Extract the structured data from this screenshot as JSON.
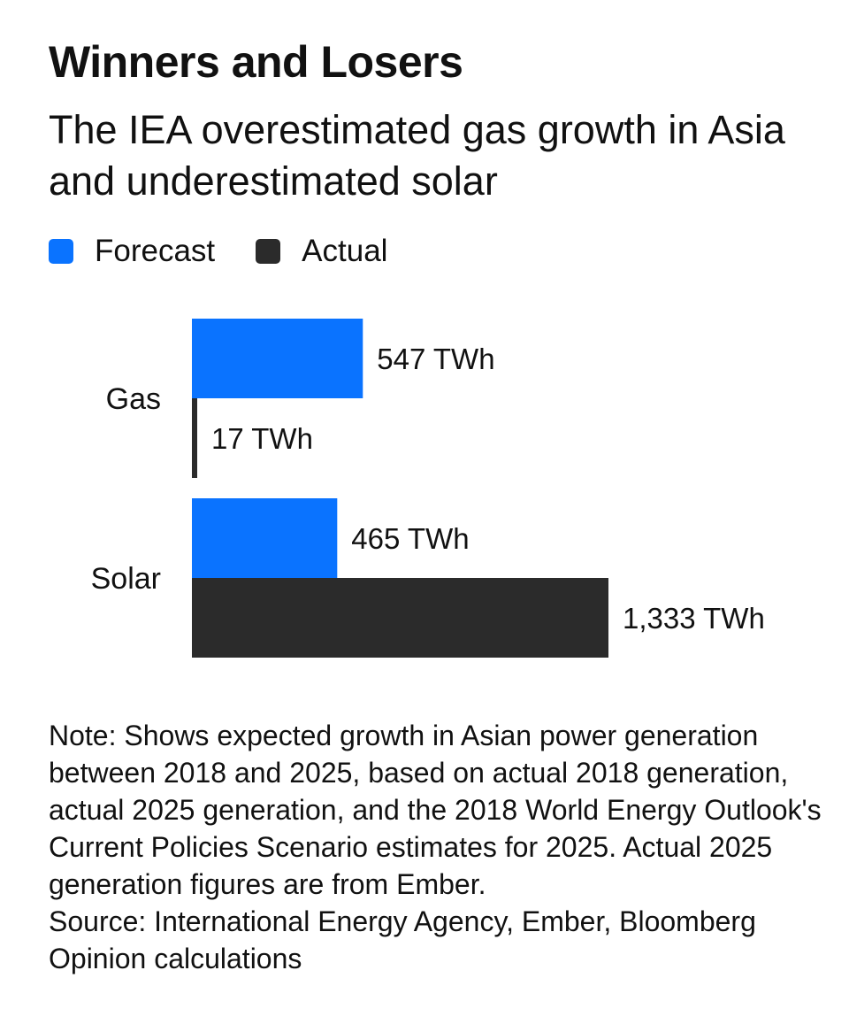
{
  "chart_data": {
    "type": "bar",
    "orientation": "horizontal",
    "title": "Winners and Losers",
    "subtitle": "The IEA overestimated gas growth in Asia and underestimated solar",
    "categories": [
      "Gas",
      "Solar"
    ],
    "series": [
      {
        "name": "Forecast",
        "color": "#0a73ff",
        "values": [
          547,
          465
        ],
        "labels": [
          "547 TWh",
          "465 TWh"
        ]
      },
      {
        "name": "Actual",
        "color": "#2b2b2b",
        "values": [
          17,
          1333
        ],
        "labels": [
          "17 TWh",
          "1,333 TWh"
        ]
      }
    ],
    "unit": "TWh",
    "xlim": [
      0,
      1333
    ],
    "grid": false,
    "legend_position": "top-left"
  },
  "notes": {
    "note": "Note: Shows expected growth in Asian power generation between 2018 and 2025, based on actual 2018 generation, actual 2025 generation, and the 2018 World Energy Outlook's Current Policies Scenario estimates for 2025. Actual 2025 generation figures are from Ember.",
    "source": "Source: International Energy Agency, Ember, Bloomberg Opinion calculations"
  }
}
